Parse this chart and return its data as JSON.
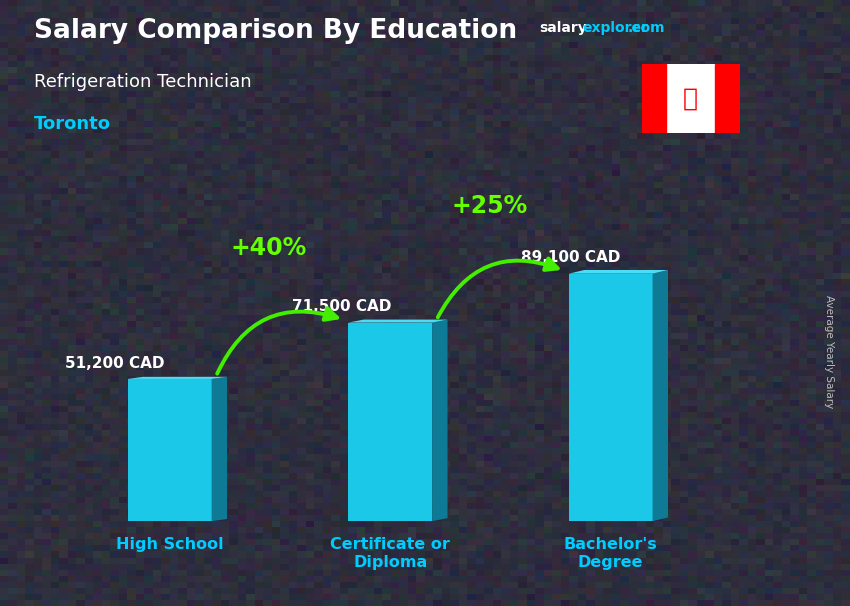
{
  "title_line1": "Salary Comparison By Education",
  "subtitle_line1": "Refrigeration Technician",
  "subtitle_line2": "Toronto",
  "categories": [
    "High School",
    "Certificate or\nDiploma",
    "Bachelor's\nDegree"
  ],
  "values": [
    51200,
    71500,
    89100
  ],
  "value_labels": [
    "51,200 CAD",
    "71,500 CAD",
    "89,100 CAD"
  ],
  "bar_color_main": "#1BC8E8",
  "bar_color_light": "#4DDCF5",
  "bar_color_dark": "#0A8FAF",
  "bar_color_side": "#0E7A95",
  "pct_labels": [
    "+40%",
    "+25%"
  ],
  "ylabel": "Average Yearly Salary",
  "bg_color": "#3a3a4a",
  "title_color": "#ffffff",
  "subtitle1_color": "#ffffff",
  "subtitle2_color": "#00CCFF",
  "value_label_color": "#ffffff",
  "pct_color": "#66FF00",
  "arrow_color": "#44EE00",
  "tick_label_color": "#00CCFF",
  "site_salary_color": "#ffffff",
  "site_explorer_color": "#00CCFF",
  "site_com_color": "#00CCFF",
  "ylabel_color": "#cccccc"
}
